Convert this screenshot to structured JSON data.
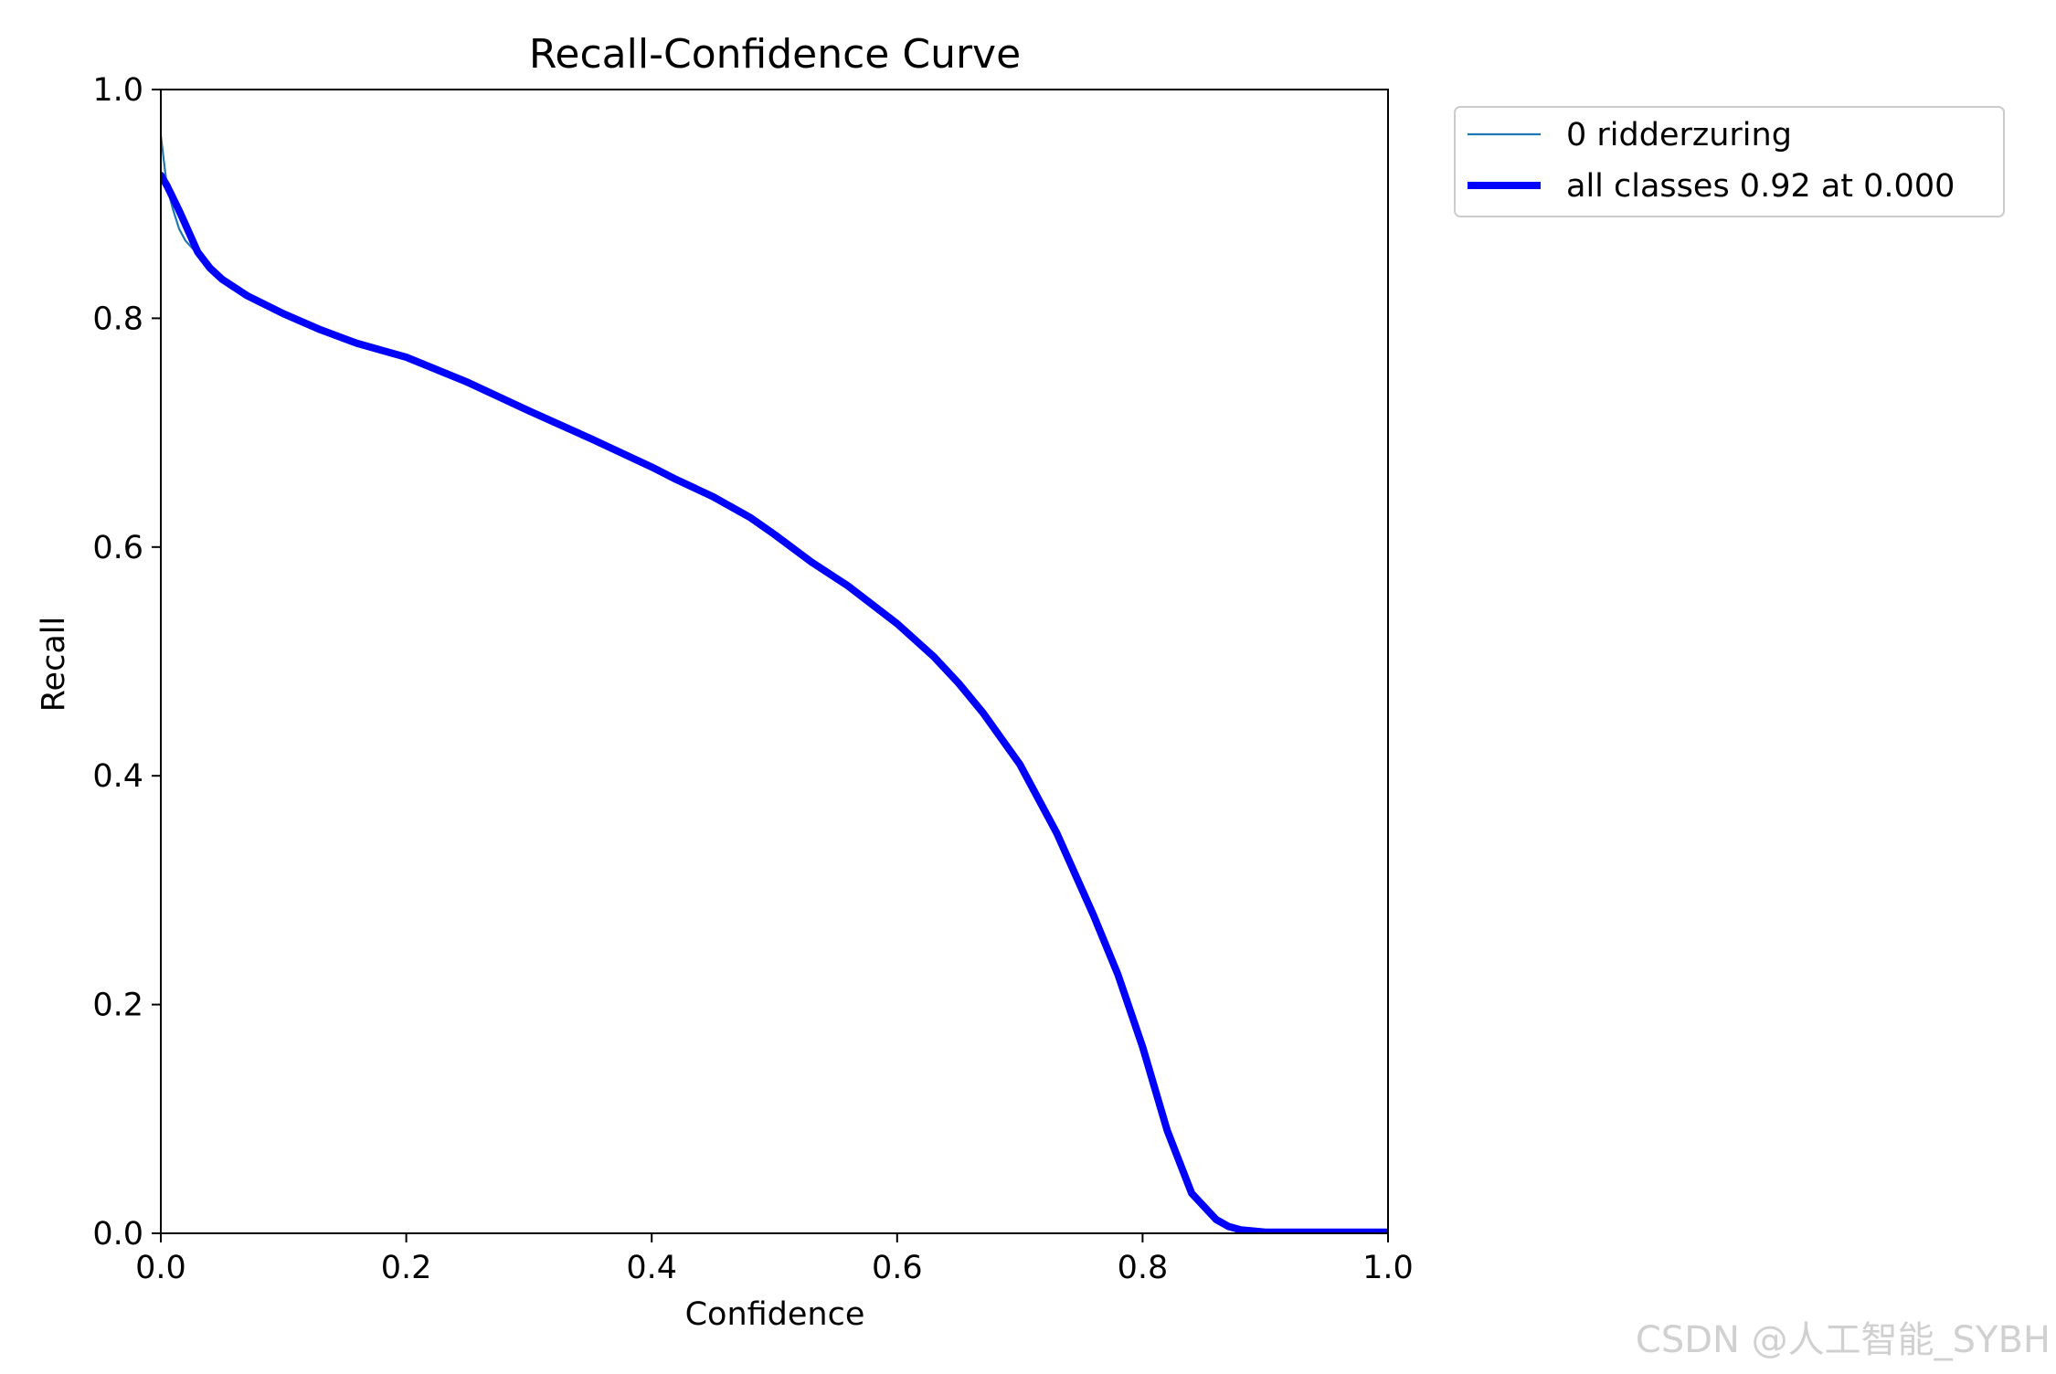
{
  "watermark": "CSDN @人工智能_SYBH",
  "chart_data": {
    "type": "line",
    "title": "Recall-Confidence Curve",
    "xlabel": "Confidence",
    "ylabel": "Recall",
    "xlim": [
      0,
      1
    ],
    "ylim": [
      0,
      1
    ],
    "xticks": [
      "0.0",
      "0.2",
      "0.4",
      "0.6",
      "0.8",
      "1.0"
    ],
    "yticks": [
      "0.0",
      "0.2",
      "0.4",
      "0.6",
      "0.8",
      "1.0"
    ],
    "grid": false,
    "legend_position": "outside-top-right",
    "series": [
      {
        "name": "0 ridderzuring",
        "color": "#1f77b4",
        "style": "thin",
        "x": [
          0.0,
          0.005,
          0.01,
          0.015,
          0.02,
          0.03,
          0.04,
          0.05,
          0.07,
          0.1,
          0.13,
          0.16,
          0.2,
          0.25,
          0.3,
          0.35,
          0.4,
          0.42,
          0.45,
          0.48,
          0.5,
          0.53,
          0.56,
          0.6,
          0.63,
          0.65,
          0.67,
          0.7,
          0.73,
          0.76,
          0.78,
          0.8,
          0.82,
          0.84,
          0.86,
          0.87,
          0.88,
          0.89,
          0.9,
          0.92,
          0.95,
          1.0
        ],
        "y": [
          0.96,
          0.915,
          0.895,
          0.878,
          0.868,
          0.856,
          0.844,
          0.834,
          0.82,
          0.804,
          0.79,
          0.778,
          0.766,
          0.744,
          0.719,
          0.695,
          0.67,
          0.659,
          0.644,
          0.626,
          0.611,
          0.587,
          0.566,
          0.533,
          0.504,
          0.481,
          0.455,
          0.41,
          0.35,
          0.278,
          0.226,
          0.163,
          0.09,
          0.035,
          0.012,
          0.006,
          0.003,
          0.002,
          0.001,
          0.001,
          0.001,
          0.001
        ]
      },
      {
        "name": "all classes 0.92 at 0.000",
        "color": "#0000ff",
        "style": "thick",
        "x": [
          0.0,
          0.005,
          0.01,
          0.015,
          0.02,
          0.03,
          0.04,
          0.05,
          0.07,
          0.1,
          0.13,
          0.16,
          0.2,
          0.25,
          0.3,
          0.35,
          0.4,
          0.42,
          0.45,
          0.48,
          0.5,
          0.53,
          0.56,
          0.6,
          0.63,
          0.65,
          0.67,
          0.7,
          0.73,
          0.76,
          0.78,
          0.8,
          0.82,
          0.84,
          0.86,
          0.87,
          0.88,
          0.89,
          0.9,
          0.92,
          0.95,
          1.0
        ],
        "y": [
          0.925,
          0.916,
          0.905,
          0.894,
          0.882,
          0.858,
          0.844,
          0.834,
          0.82,
          0.804,
          0.79,
          0.778,
          0.766,
          0.744,
          0.719,
          0.695,
          0.67,
          0.659,
          0.644,
          0.626,
          0.611,
          0.587,
          0.566,
          0.533,
          0.504,
          0.481,
          0.455,
          0.41,
          0.35,
          0.278,
          0.226,
          0.163,
          0.09,
          0.035,
          0.012,
          0.006,
          0.003,
          0.002,
          0.001,
          0.001,
          0.001,
          0.001
        ]
      }
    ]
  }
}
